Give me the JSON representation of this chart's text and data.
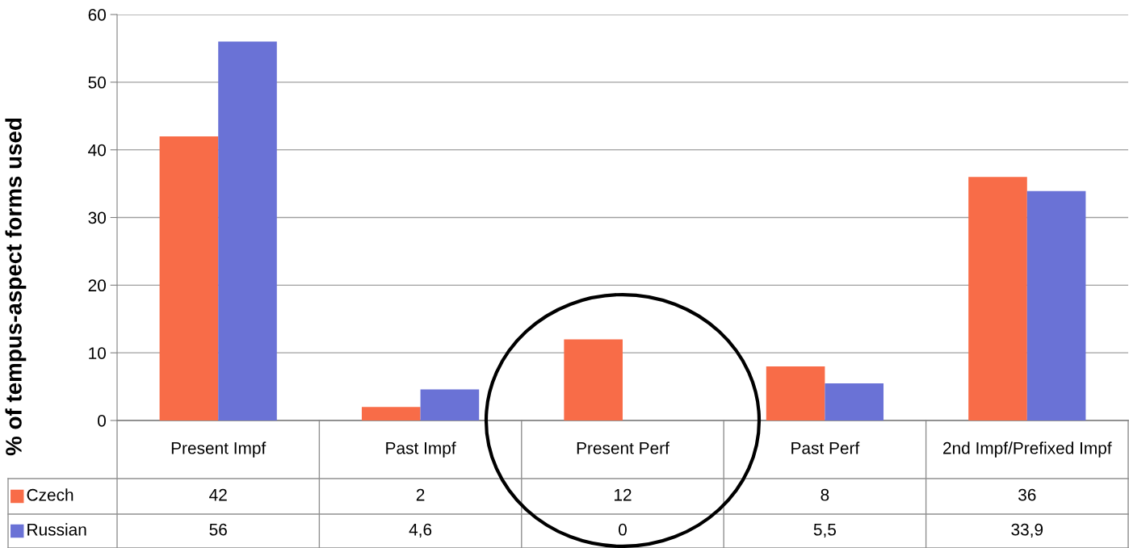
{
  "chart_data": {
    "type": "bar",
    "ylabel": "% of tempus-aspect forms used",
    "categories": [
      "Present Impf",
      "Past Impf",
      "Present Perf",
      "Past Perf",
      "2nd Impf/Prefixed Impf"
    ],
    "series": [
      {
        "name": "Czech",
        "color": "#f86c48",
        "values": [
          42,
          2,
          12,
          8,
          36
        ],
        "value_labels": [
          "42",
          "2",
          "12",
          "8",
          "36"
        ]
      },
      {
        "name": "Russian",
        "color": "#6a72d6",
        "values": [
          56,
          4.6,
          0,
          5.5,
          33.9
        ],
        "value_labels": [
          "56",
          "4,6",
          "0",
          "5,5",
          "33,9"
        ]
      }
    ],
    "ylim": [
      0,
      60
    ],
    "yticks": [
      0,
      10,
      20,
      30,
      40,
      50,
      60
    ],
    "grid": "y",
    "legend": "bottom"
  }
}
